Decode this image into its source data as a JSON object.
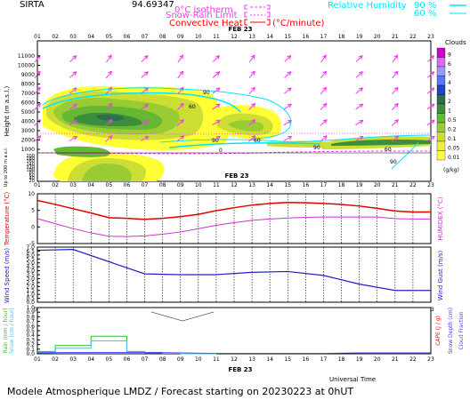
{
  "header": {
    "station": "SIRTA",
    "code": "94.69347",
    "legend_isotherm": "0°C isotherm",
    "legend_snowrain": "Snow-Rain Limit",
    "legend_convective": "Convective Heat",
    "legend_convective_unit": "(°C/minute)",
    "legend_rh": "Relative Humidity",
    "rh_90": "90 %",
    "rh_60": "60 %"
  },
  "date_label": "FEB 23",
  "hour_labels": [
    "01",
    "02",
    "03",
    "04",
    "05",
    "06",
    "07",
    "08",
    "09",
    "10",
    "11",
    "12",
    "13",
    "14",
    "15",
    "16",
    "17",
    "18",
    "19",
    "20",
    "21",
    "22",
    "23"
  ],
  "xlabel": "Universal Time",
  "footer": "Modele Atmospherique LMDZ / Forecast starting on 20230223 at 0hUT",
  "colors": {
    "isotherm": "#ff33ff",
    "snowrain": "#ff33ff",
    "convective": "#ff0000",
    "rh": "#00e5ff",
    "temperature": "#e00000",
    "humidex": "#d030d0",
    "wind": "#2020c0",
    "rain": "#30c030",
    "snow": "#40c0ff",
    "cape": "#ff0000"
  },
  "chart_data": [
    {
      "type": "heatmap",
      "name": "clouds",
      "ylabel": "Height (m a.s.l.)",
      "ylabel_low": "Up to 200 m a.s.l.",
      "yticks": [
        "11000",
        "10000",
        "9000",
        "8000",
        "7000",
        "6000",
        "5000",
        "4000",
        "3000",
        "2000",
        "1000"
      ],
      "yticks_low": [
        "200",
        "180",
        "160",
        "140",
        "120",
        "100",
        "80",
        "60",
        "40",
        "20"
      ],
      "colorbar_title": "Clouds",
      "colorbar_unit": "(g/kg)",
      "colorbar_levels": [
        "9",
        "6",
        "5",
        "4",
        "3",
        "2",
        "1",
        "0.5",
        "0.2",
        "0.1",
        "0.05",
        "0.01"
      ],
      "colorbar_colors": [
        "#cc00cc",
        "#e066ff",
        "#9999ff",
        "#5577ff",
        "#2244cc",
        "#2d6e4e",
        "#3c8e3c",
        "#66b833",
        "#99cc33",
        "#ccdd33",
        "#eeee44",
        "#ffff33"
      ],
      "contour_values": [
        "90",
        "60",
        "90",
        "60",
        "90",
        "60",
        "90"
      ],
      "temperature_zero_label": "0"
    },
    {
      "type": "line",
      "name": "temperature-humidex",
      "ylabel": "Temperature (°C)",
      "ylabel_right": "HUMIDEX (°C)",
      "ylim": [
        -5,
        10
      ],
      "yticks": [
        "10",
        "5",
        "0",
        "-5"
      ],
      "series": [
        {
          "name": "Temperature",
          "x": [
            1,
            2,
            3,
            4,
            5,
            6,
            7,
            8,
            9,
            10,
            11,
            12,
            13,
            14,
            15,
            16,
            17,
            18,
            19,
            20,
            21,
            22,
            23
          ],
          "values": [
            8,
            6.8,
            5.5,
            4.2,
            2.8,
            2.6,
            2.3,
            2.6,
            3.1,
            3.8,
            4.9,
            5.8,
            6.6,
            7.1,
            7.4,
            7.3,
            7.1,
            6.8,
            6.3,
            5.6,
            4.8,
            4.5,
            4.5
          ]
        },
        {
          "name": "Humidex",
          "x": [
            1,
            2,
            3,
            4,
            5,
            6,
            7,
            8,
            9,
            10,
            11,
            12,
            13,
            14,
            15,
            16,
            17,
            18,
            19,
            20,
            21,
            22,
            23
          ],
          "values": [
            2.5,
            1,
            -0.5,
            -1.8,
            -2.8,
            -2.9,
            -2.7,
            -2.2,
            -1.5,
            -0.5,
            0.5,
            1.3,
            2,
            2.4,
            2.7,
            2.9,
            3,
            3,
            3,
            3,
            2.5,
            2.4,
            2.4
          ]
        }
      ]
    },
    {
      "type": "line",
      "name": "wind",
      "ylabel": "Wind Speed (m/s)",
      "ylabel_right": "Wind Gust (m/s)",
      "ylim": [
        0,
        7
      ],
      "yticks": [
        "7.0",
        "6.5",
        "6.0",
        "5.5",
        "5.0",
        "4.5",
        "4.0",
        "3.5",
        "3.0",
        "2.5",
        "2.0",
        "1.5",
        "1.0",
        "0.5",
        "0.0"
      ],
      "series": [
        {
          "name": "Wind Speed",
          "x": [
            1,
            3,
            7,
            9,
            11,
            13,
            15,
            17,
            19,
            21,
            23
          ],
          "values": [
            6.6,
            6.7,
            3.6,
            3.5,
            3.5,
            3.8,
            3.9,
            3.4,
            2.3,
            1.5,
            1.5
          ]
        }
      ]
    },
    {
      "type": "bar",
      "name": "precipitation",
      "ylabel": "Rain (mm / hour)",
      "ylabel2": "Snow (cm / hour)",
      "ylabel_right": "CAPE (J / g)",
      "ylabel_right2": "Snow Depth (cm)",
      "ylabel_right3": "Cloud Fraction",
      "ylim": [
        0,
        1
      ],
      "yticks": [
        "1.0",
        "0.9",
        "0.8",
        "0.7",
        "0.6",
        "0.5",
        "0.4",
        "0.3",
        "0.2",
        "0.1",
        "0.0"
      ],
      "series": [
        {
          "name": "Rain",
          "x": [
            1,
            2,
            3,
            4,
            5,
            6,
            7,
            8,
            9,
            10
          ],
          "values": [
            0.05,
            0.18,
            0.18,
            0.38,
            0.38,
            0.05,
            0.03,
            0.01,
            0,
            0
          ]
        },
        {
          "name": "Snow",
          "x": [
            1,
            2,
            3,
            4,
            5,
            6,
            7,
            8,
            9,
            10
          ],
          "values": [
            0.03,
            0.12,
            0.12,
            0.28,
            0.28,
            0.04,
            0.02,
            0.01,
            0,
            0
          ]
        },
        {
          "name": "Cloud Fraction",
          "x": [
            1,
            3,
            5,
            7,
            9,
            11,
            13,
            15,
            17,
            19,
            21,
            23
          ],
          "values": [
            0.02,
            0.03,
            0.03,
            0.03,
            0.02,
            0.01,
            0.01,
            0.01,
            0.01,
            0.02,
            0.02,
            0.02
          ]
        }
      ]
    }
  ]
}
